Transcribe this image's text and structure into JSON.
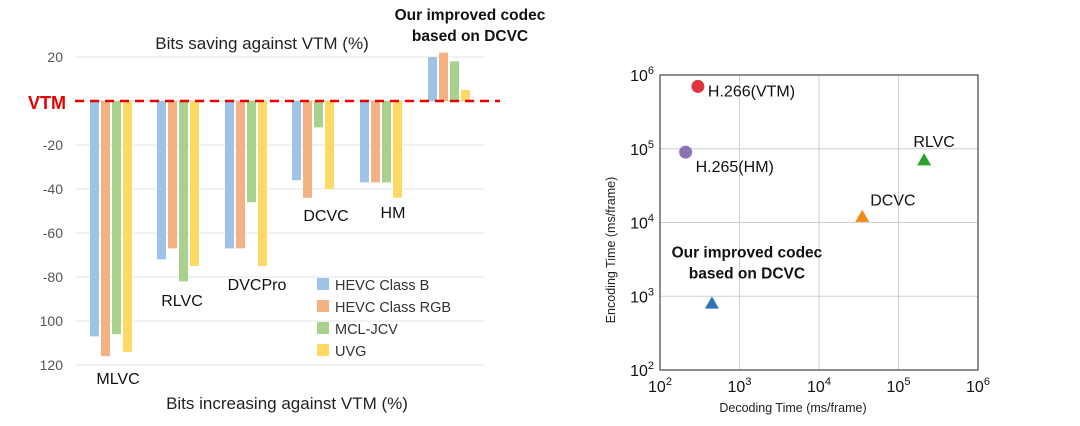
{
  "chart_data": [
    {
      "type": "bar",
      "title": "Bits saving against VTM (%)",
      "xlabel": "Bits increasing against VTM (%)",
      "ylabel": "",
      "baseline_label": "VTM",
      "ylim": [
        -120,
        20
      ],
      "y_ticks": [
        20,
        0,
        -20,
        -40,
        -60,
        -80,
        -100,
        -120
      ],
      "y_tick_labels": [
        "20",
        "",
        "-20",
        "-40",
        "-60",
        "-80",
        "100",
        "120"
      ],
      "categories": [
        "MLVC",
        "RLVC",
        "DVCPro",
        "DCVC",
        "HM",
        "Our improved codec based on DCVC"
      ],
      "category_labels": [
        "MLVC",
        "RLVC",
        "DVCPro",
        "DCVC",
        "HM",
        "Our improved codec\nbased on DCVC"
      ],
      "series": [
        {
          "name": "HEVC Class B",
          "color": "#9dc3e6",
          "values": [
            -107,
            -72,
            -67,
            -36,
            -37,
            20
          ]
        },
        {
          "name": "HEVC Class RGB",
          "color": "#f4b183",
          "values": [
            -116,
            -67,
            -67,
            -44,
            -37,
            22
          ]
        },
        {
          "name": "MCL-JCV",
          "color": "#a9d18e",
          "values": [
            -106,
            -82,
            -46,
            -12,
            -37,
            18
          ]
        },
        {
          "name": "UVG",
          "color": "#ffd966",
          "values": [
            -114,
            -75,
            -75,
            -40,
            -44,
            5
          ]
        }
      ],
      "legend_position": "bottom-right",
      "baseline_color": "#e60000"
    },
    {
      "type": "scatter",
      "title": "",
      "xlabel": "Decoding Time (ms/frame)",
      "ylabel": "Encoding Time (ms/frame)",
      "xscale": "log",
      "yscale": "log",
      "xlim": [
        100,
        1000000
      ],
      "ylim": [
        100,
        1000000
      ],
      "x_tick_labels": [
        {
          "base": "10",
          "exp": "2"
        },
        {
          "base": "10",
          "exp": "3"
        },
        {
          "base": "10",
          "exp": "4"
        },
        {
          "base": "10",
          "exp": "5"
        },
        {
          "base": "10",
          "exp": "6"
        }
      ],
      "y_tick_labels": [
        {
          "base": "10",
          "exp": "2"
        },
        {
          "base": "10",
          "exp": "3"
        },
        {
          "base": "10",
          "exp": "4"
        },
        {
          "base": "10",
          "exp": "5"
        },
        {
          "base": "10",
          "exp": "6"
        }
      ],
      "grid": true,
      "points": [
        {
          "label": "H.266(VTM)",
          "x": 300,
          "y": 700000,
          "marker": "circle",
          "color": "#e0343c"
        },
        {
          "label": "H.265(HM)",
          "x": 210,
          "y": 90000,
          "marker": "circle",
          "color": "#8e72b8"
        },
        {
          "label": "RLVC",
          "x": 210000,
          "y": 70000,
          "marker": "triangle",
          "color": "#2ca02c"
        },
        {
          "label": "DCVC",
          "x": 35000,
          "y": 12000,
          "marker": "triangle",
          "color": "#f28a1a"
        },
        {
          "label": "Our improved codec\nbased on DCVC",
          "x": 450,
          "y": 800,
          "marker": "triangle",
          "color": "#2e74b5"
        }
      ]
    }
  ]
}
